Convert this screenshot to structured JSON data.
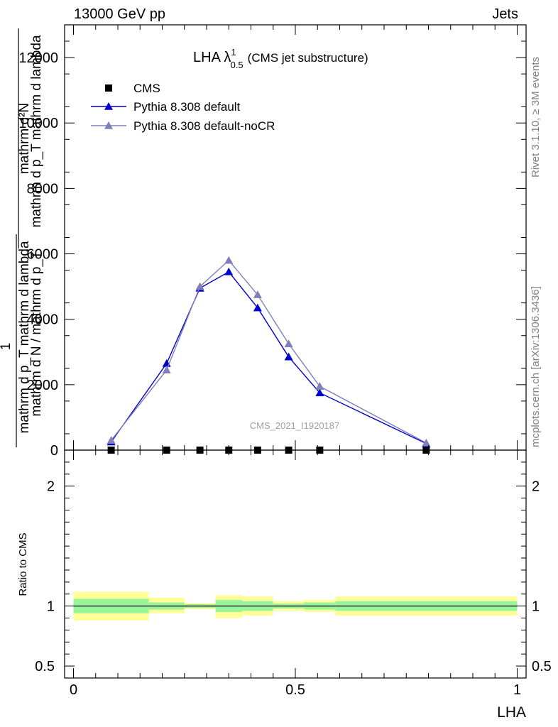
{
  "header": {
    "left": "13000 GeV pp",
    "right": "Jets"
  },
  "side_labels": {
    "rivet": "Rivet 3.1.10, ≥ 3M events",
    "mcplots": "mcplots.cern.ch [arXiv:1306.3436]"
  },
  "colors": {
    "cms": "#000000",
    "default": "#0000cc",
    "noCR": "#8080b8",
    "band_inner": "#99f599",
    "band_outer": "#ffff99"
  },
  "chart_data": [
    {
      "type": "line",
      "title": "LHA λ",
      "title_superscript": "1",
      "title_subscript": "0.5",
      "title_suffix": "(CMS jet substructure)",
      "ylabel_num": "mathrm d²N",
      "ylabel_den": "mathrm d p_T mathrm d lambda",
      "ylabel_pre_1": "1",
      "ylabel_pre_2": "mathrm d N / mathrm d p_T",
      "ylabel_lines": [
        "mathrm d²N",
        "mathrm d p_T mathrm d lambda",
        "1",
        "mathrm d N / mathrm d p_T",
        "mathrm d p_T mathrm d lambda"
      ],
      "ylim": [
        0,
        13000
      ],
      "yticks": [
        0,
        2000,
        4000,
        6000,
        8000,
        10000,
        12000
      ],
      "ytick_labels": [
        "0",
        "2000",
        "4000",
        "6000",
        "8000",
        "10000",
        "12000"
      ],
      "xlim": [
        -0.02,
        1.02
      ],
      "watermark": "CMS_2021_I1920187",
      "legend_position": "top-left",
      "series": [
        {
          "name": "CMS",
          "marker": "square",
          "x": [
            0.085,
            0.21,
            0.285,
            0.35,
            0.415,
            0.485,
            0.555,
            0.795
          ],
          "y": [
            0,
            0,
            0,
            0,
            0,
            0,
            0,
            0
          ]
        },
        {
          "name": "Pythia 8.308 default",
          "marker": "triangle",
          "x": [
            0.085,
            0.21,
            0.285,
            0.35,
            0.415,
            0.485,
            0.555,
            0.795
          ],
          "y": [
            250,
            2650,
            4950,
            5450,
            4350,
            2850,
            1750,
            200
          ]
        },
        {
          "name": "Pythia 8.308 default-noCR",
          "marker": "triangle",
          "x": [
            0.085,
            0.21,
            0.285,
            0.35,
            0.415,
            0.485,
            0.555,
            0.795
          ],
          "y": [
            300,
            2450,
            5000,
            5800,
            4750,
            3250,
            1950,
            220
          ]
        }
      ]
    },
    {
      "type": "area",
      "ylabel": "Ratio to CMS",
      "xlabel": "LHA",
      "ylim": [
        0.4,
        2.3
      ],
      "yticks": [
        0.5,
        1,
        2
      ],
      "ytick_labels": [
        "0.5",
        "1",
        "2"
      ],
      "xticks": [
        0,
        0.5,
        1
      ],
      "xtick_labels": [
        "0",
        "0.5",
        "1"
      ],
      "reference_line": 1,
      "bins": [
        {
          "x0": 0.0,
          "x1": 0.17,
          "inner": [
            0.94,
            1.06
          ],
          "outer": [
            0.88,
            1.12
          ]
        },
        {
          "x0": 0.17,
          "x1": 0.25,
          "inner": [
            0.97,
            1.03
          ],
          "outer": [
            0.94,
            1.07
          ]
        },
        {
          "x0": 0.25,
          "x1": 0.32,
          "inner": [
            0.985,
            1.015
          ],
          "outer": [
            0.975,
            1.025
          ]
        },
        {
          "x0": 0.32,
          "x1": 0.38,
          "inner": [
            0.95,
            1.05
          ],
          "outer": [
            0.9,
            1.09
          ]
        },
        {
          "x0": 0.38,
          "x1": 0.45,
          "inner": [
            0.96,
            1.04
          ],
          "outer": [
            0.92,
            1.08
          ]
        },
        {
          "x0": 0.45,
          "x1": 0.52,
          "inner": [
            0.98,
            1.02
          ],
          "outer": [
            0.96,
            1.04
          ]
        },
        {
          "x0": 0.52,
          "x1": 0.59,
          "inner": [
            0.97,
            1.03
          ],
          "outer": [
            0.95,
            1.05
          ]
        },
        {
          "x0": 0.59,
          "x1": 1.0,
          "inner": [
            0.96,
            1.04
          ],
          "outer": [
            0.92,
            1.08
          ]
        }
      ]
    }
  ]
}
